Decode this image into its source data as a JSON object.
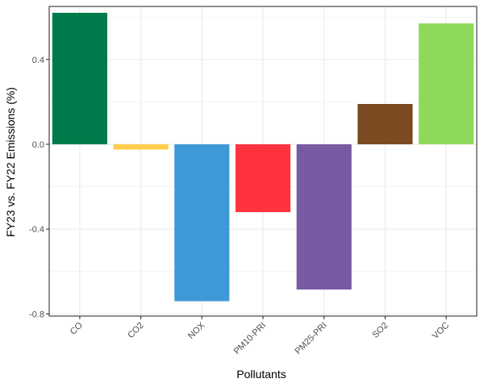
{
  "chart_data": {
    "type": "bar",
    "xlabel": "Pollutants",
    "ylabel": "FY23 vs. FY22 Emissions (%)",
    "categories": [
      "CO",
      "CO2",
      "NOX",
      "PM10-PRI",
      "PM25-PRI",
      "SO2",
      "VOC"
    ],
    "values": [
      0.62,
      -0.025,
      -0.74,
      -0.32,
      -0.685,
      0.19,
      0.57
    ],
    "colors": [
      "#007A4A",
      "#FFCD4D",
      "#3F99D6",
      "#FF3340",
      "#775AA2",
      "#7B4A21",
      "#8CD95B"
    ],
    "ylim": [
      -0.81,
      0.65
    ],
    "yticks": [
      -0.8,
      -0.4,
      0.0,
      0.4
    ],
    "ytick_labels": [
      "-0.8",
      "-0.4",
      "0.0",
      "0.4"
    ],
    "grid": true,
    "legend": "none"
  }
}
